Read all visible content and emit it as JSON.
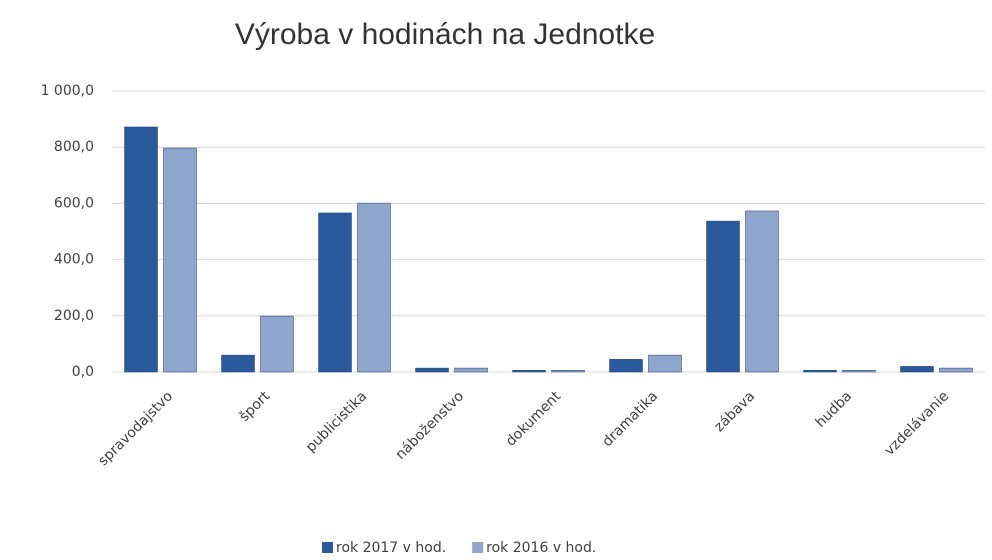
{
  "chart_data": {
    "type": "bar",
    "title": "Výroba v hodinách na Jednotke",
    "categories": [
      "spravodajstvo",
      "šport",
      "publicistika",
      "náboženstvo",
      "dokument",
      "dramatika",
      "zábava",
      "hudba",
      "vzdelávanie"
    ],
    "series": [
      {
        "name": "rok 2017 v hod.",
        "color": "#2b5a9c",
        "values": [
          872,
          60,
          566,
          14,
          6,
          45,
          537,
          6,
          20
        ]
      },
      {
        "name": "rok 2016 v hod.",
        "color": "#8ea5cc",
        "values": [
          797,
          199,
          601,
          14,
          6,
          60,
          573,
          6,
          14
        ]
      }
    ],
    "ylim": [
      0,
      1000
    ],
    "yticks": [
      {
        "value": 0,
        "label": "0,0"
      },
      {
        "value": 200,
        "label": "200,0"
      },
      {
        "value": 400,
        "label": "400,0"
      },
      {
        "value": 600,
        "label": "600,0"
      },
      {
        "value": 800,
        "label": "800,0"
      },
      {
        "value": 1000,
        "label": "1 000,0"
      }
    ],
    "grid": true,
    "legend": "bottom"
  }
}
